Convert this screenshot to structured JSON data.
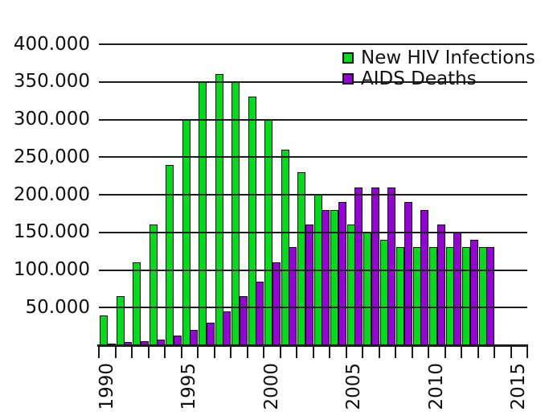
{
  "chart_data": {
    "type": "bar",
    "title": "",
    "xlabel": "",
    "ylabel": "",
    "categories": [
      "1990",
      "1991",
      "1992",
      "1993",
      "1994",
      "1995",
      "1996",
      "1997",
      "1998",
      "1999",
      "2000",
      "2001",
      "2002",
      "2003",
      "2004",
      "2005",
      "2006",
      "2007",
      "2008",
      "2009",
      "2010",
      "2011",
      "2012",
      "2013"
    ],
    "series": [
      {
        "name": "New HIV Infections",
        "color": "#00d91c",
        "values": [
          40000,
          65000,
          110000,
          160000,
          240000,
          300000,
          350000,
          360000,
          350000,
          330000,
          300000,
          260000,
          230000,
          200000,
          180000,
          160000,
          150000,
          140000,
          130000,
          130000,
          130000,
          130000,
          130000,
          130000
        ]
      },
      {
        "name": "AIDS Deaths",
        "color": "#9202d0",
        "values": [
          2000,
          4000,
          5000,
          8000,
          13000,
          20000,
          30000,
          45000,
          65000,
          85000,
          110000,
          130000,
          160000,
          180000,
          190000,
          210000,
          210000,
          210000,
          190000,
          180000,
          160000,
          150000,
          140000,
          130000
        ]
      }
    ],
    "ylim": [
      0,
      400000
    ],
    "ytick_interval": 50000,
    "ytick_labels_bottom_to_top": [
      "50.000",
      "100.000",
      "150.000",
      "200.000",
      "250,000",
      "300.000",
      "350.000",
      "400.000"
    ],
    "xtick_labels": [
      "1990",
      "1995",
      "2000",
      "2005",
      "2010",
      "2015"
    ],
    "x_axis_first_year": 1990,
    "x_axis_last_slot_year": 2015,
    "grid": "horizontal",
    "grid_color": "#1c1c1c",
    "background_color": "#ffffff",
    "legend_position": "top-right"
  }
}
